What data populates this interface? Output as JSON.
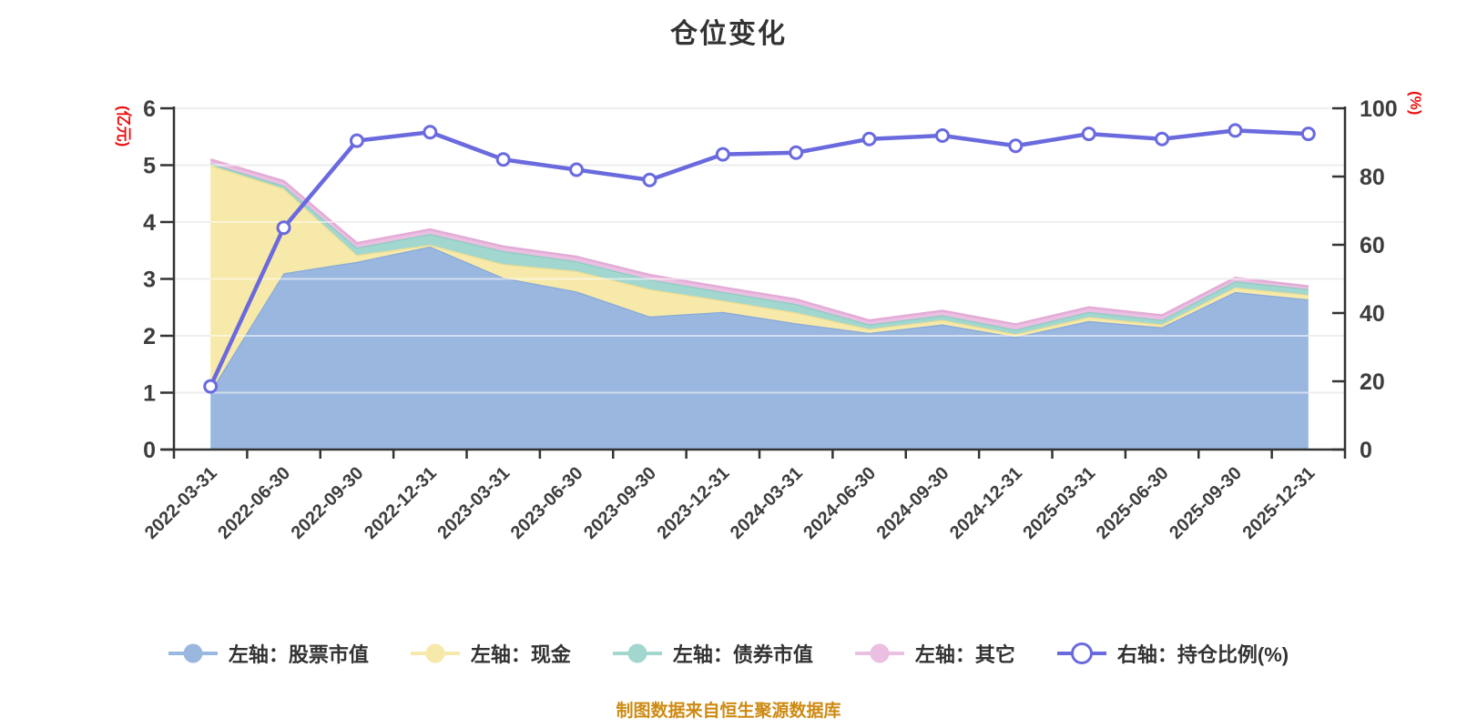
{
  "title": "仓位变化",
  "caption": "制图数据来自恒生聚源数据库",
  "colors": {
    "background": "#ffffff",
    "title": "#333333",
    "caption": "#cd8a12",
    "axis_line": "#333333",
    "axis_label": "#3d3d3d",
    "axis_name_red": "#ee1111",
    "grid_line": "#d9d9d9",
    "grid_line_overlay": "rgba(255,255,255,0.55)"
  },
  "left_axis": {
    "name": "(亿元)",
    "min": 0,
    "max": 6,
    "ticks": [
      0,
      1,
      2,
      3,
      4,
      5,
      6
    ]
  },
  "right_axis": {
    "name": "(%)",
    "min": 0,
    "max": 100,
    "ticks": [
      0,
      20,
      40,
      60,
      80,
      100
    ]
  },
  "legend": [
    {
      "label": "左轴：股票市值",
      "color": "#9ab7e0",
      "hollow": false
    },
    {
      "label": "左轴：现金",
      "color": "#f7e9a9",
      "hollow": false
    },
    {
      "label": "左轴：债券市值",
      "color": "#a2d7cf",
      "hollow": false
    },
    {
      "label": "左轴：其它",
      "color": "#eabfe1",
      "hollow": false
    },
    {
      "label": "右轴：持仓比例(%)",
      "color": "#6a6ade",
      "hollow": true
    }
  ],
  "chart_data": {
    "type": "area",
    "title": "仓位变化",
    "grid": true,
    "legend_position": "bottom",
    "left_ylim": [
      0,
      6
    ],
    "right_ylim": [
      0,
      100
    ],
    "x": [
      "2022-03-31",
      "2022-06-30",
      "2022-09-30",
      "2022-12-31",
      "2023-03-31",
      "2023-06-30",
      "2023-09-30",
      "2023-12-31",
      "2024-03-31",
      "2024-06-30",
      "2024-09-30",
      "2024-12-31",
      "2025-03-31",
      "2025-06-30",
      "2025-09-30",
      "2025-12-31"
    ],
    "series": [
      {
        "id": "stock",
        "name": "左轴：股票市值",
        "axis": "left",
        "type": "area",
        "stack": true,
        "fill": "#9ab7e0",
        "stroke": "#87a9d8",
        "values": [
          1.02,
          3.1,
          3.3,
          3.57,
          3.02,
          2.78,
          2.34,
          2.42,
          2.22,
          2.05,
          2.2,
          1.98,
          2.26,
          2.15,
          2.77,
          2.64
        ]
      },
      {
        "id": "cash",
        "name": "左轴：现金",
        "axis": "left",
        "type": "area",
        "stack": true,
        "fill": "#f7e9a9",
        "stroke": "#eedd92",
        "values": [
          3.98,
          1.49,
          0.12,
          0.03,
          0.24,
          0.36,
          0.48,
          0.2,
          0.19,
          0.07,
          0.08,
          0.05,
          0.07,
          0.05,
          0.08,
          0.08
        ]
      },
      {
        "id": "bond",
        "name": "左轴：债券市值",
        "axis": "left",
        "type": "area",
        "stack": true,
        "fill": "#a2d7cf",
        "stroke": "#8cccc2",
        "values": [
          0.03,
          0.05,
          0.13,
          0.19,
          0.23,
          0.17,
          0.17,
          0.15,
          0.15,
          0.08,
          0.08,
          0.08,
          0.09,
          0.08,
          0.11,
          0.1
        ]
      },
      {
        "id": "other",
        "name": "左轴：其它",
        "axis": "left",
        "type": "area",
        "stack": true,
        "fill": "#eabfe1",
        "stroke": "#e3acd7",
        "values": [
          0.07,
          0.08,
          0.08,
          0.08,
          0.08,
          0.08,
          0.08,
          0.08,
          0.08,
          0.07,
          0.08,
          0.09,
          0.08,
          0.08,
          0.06,
          0.05
        ]
      },
      {
        "id": "ratio",
        "name": "右轴：持仓比例(%)",
        "axis": "right",
        "type": "line",
        "color": "#6a6ade",
        "marker_fill": "#ffffff",
        "values": [
          18.5,
          65,
          90.5,
          93,
          85,
          82,
          79,
          86.5,
          87,
          91,
          92,
          89,
          92.5,
          91,
          93.5,
          92.5
        ]
      }
    ]
  }
}
